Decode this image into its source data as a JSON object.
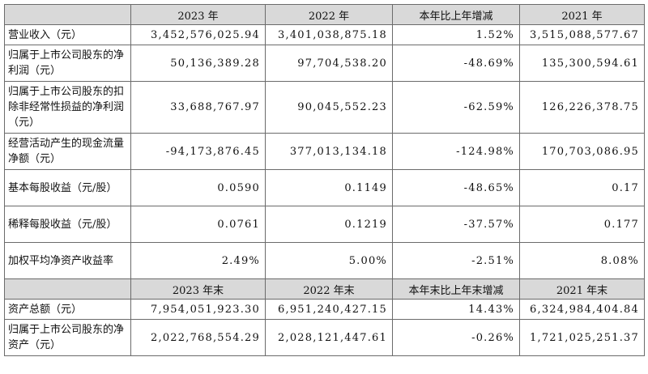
{
  "header1": [
    "",
    "2023 年",
    "2022 年",
    "本年比上年增减",
    "2021 年"
  ],
  "rows1": [
    {
      "label": "营业收入（元）",
      "values": [
        "3,452,576,025.94",
        "3,401,038,875.18",
        "1.52%",
        "3,515,088,577.67"
      ]
    },
    {
      "label": "归属于上市公司股东的净利润（元）",
      "values": [
        "50,136,389.28",
        "97,704,538.20",
        "-48.69%",
        "135,300,594.61"
      ]
    },
    {
      "label": "归属于上市公司股东的扣除非经常性损益的净利润（元）",
      "values": [
        "33,688,767.97",
        "90,045,552.23",
        "-62.59%",
        "126,226,378.75"
      ]
    },
    {
      "label": "经营活动产生的现金流量净额（元）",
      "values": [
        "-94,173,876.45",
        "377,013,134.18",
        "-124.98%",
        "170,703,086.95"
      ]
    },
    {
      "label": "基本每股收益（元/股）",
      "values": [
        "0.0590",
        "0.1149",
        "-48.65%",
        "0.17"
      ]
    },
    {
      "label": "稀释每股收益（元/股）",
      "values": [
        "0.0761",
        "0.1219",
        "-37.57%",
        "0.177"
      ]
    },
    {
      "label": "加权平均净资产收益率",
      "values": [
        "2.49%",
        "5.00%",
        "-2.51%",
        "8.08%"
      ]
    }
  ],
  "header2": [
    "",
    "2023 年末",
    "2022 年末",
    "本年末比上年末增减",
    "2021 年末"
  ],
  "rows2": [
    {
      "label": "资产总额（元）",
      "values": [
        "7,954,051,923.30",
        "6,951,240,427.15",
        "14.43%",
        "6,324,984,404.84"
      ]
    },
    {
      "label": "归属于上市公司股东的净资产（元）",
      "values": [
        "2,022,768,554.29",
        "2,028,121,447.61",
        "-0.26%",
        "1,721,025,251.37"
      ]
    }
  ]
}
